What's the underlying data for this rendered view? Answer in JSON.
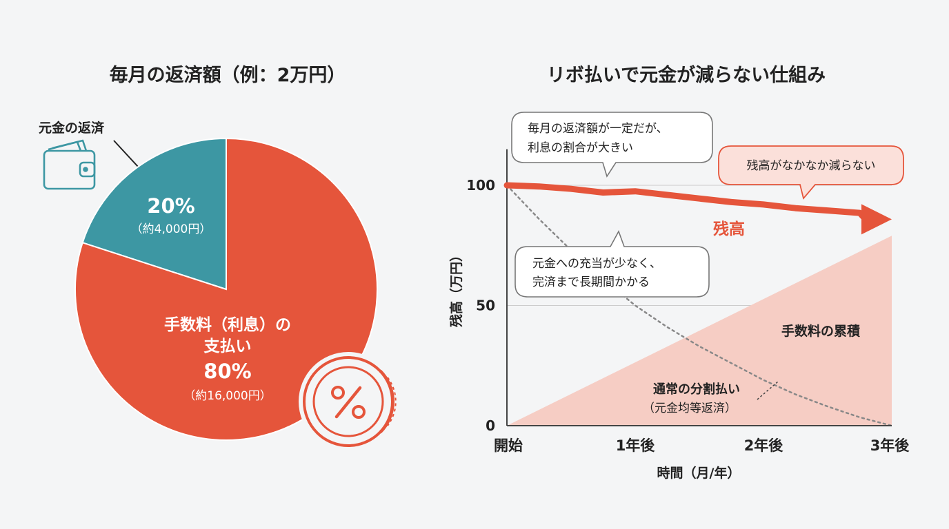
{
  "colors": {
    "background": "#f4f5f6",
    "interest": "#e5553b",
    "principal": "#3d97a3",
    "fee_area": "#f6cdc4",
    "text": "#222222",
    "callout_border": "#777777",
    "callout_accent_bg": "#fbe0da",
    "dotted_line": "#888888",
    "gridline": "#cccccc"
  },
  "left": {
    "title": "毎月の返済額（例：2万円）",
    "principal_label": "元金の返済",
    "icons": {
      "wallet": "wallet-icon",
      "coin": "percent-coin-icon",
      "arrow": "arrow-icon"
    }
  },
  "right": {
    "title": "リボ払いで元金が減らない仕組み",
    "callout_ratio": [
      "毎月の返済額が一定だが、",
      "利息の割合が大きい"
    ],
    "callout_balance": "残高がなかなか減らない",
    "callout_principal": [
      "元金への充当が少なく、",
      "完済まで長期間かかる"
    ],
    "label_balance": "残高",
    "label_fee": "手数料の累積",
    "label_normal": [
      "通常の分割払い",
      "（元金均等返済）"
    ]
  },
  "chart_data": [
    {
      "type": "pie",
      "slices": [
        {
          "label": "元金の返済",
          "percent_label": "20%",
          "amount_label": "（約4,000円）",
          "value": 20,
          "color": "#3d97a3"
        },
        {
          "label": "手数料（利息）の支払い",
          "label_lines": [
            "手数料（利息）の",
            "支払い"
          ],
          "percent_label": "80%",
          "amount_label": "（約16,000円）",
          "value": 80,
          "color": "#e5553b"
        }
      ]
    },
    {
      "type": "line",
      "xlabel": "時間（月/年）",
      "ylabel": "残高（万円）",
      "categories": [
        "開始",
        "1年後",
        "2年後",
        "3年後"
      ],
      "x": [
        0,
        1,
        2,
        3
      ],
      "yticks": [
        0,
        50,
        100
      ],
      "ylim": [
        0,
        115
      ],
      "series": [
        {
          "name": "残高",
          "style": "thick-arrow",
          "color": "#e5553b",
          "points": [
            [
              0,
              100
            ],
            [
              0.25,
              99.5
            ],
            [
              0.5,
              98.5
            ],
            [
              0.75,
              97
            ],
            [
              1,
              97.5
            ],
            [
              1.25,
              96
            ],
            [
              1.5,
              94.5
            ],
            [
              1.75,
              93
            ],
            [
              2,
              92
            ],
            [
              2.25,
              90.5
            ],
            [
              2.5,
              89.5
            ],
            [
              2.75,
              88.5
            ],
            [
              3,
              87
            ]
          ]
        },
        {
          "name": "手数料の累積",
          "style": "area",
          "color": "#f6cdc4",
          "points": [
            [
              0,
              0
            ],
            [
              3,
              79
            ]
          ]
        },
        {
          "name": "通常の分割払い（元金均等返済）",
          "style": "dotted",
          "color": "#888888",
          "points": [
            [
              0,
              100
            ],
            [
              0.25,
              86
            ],
            [
              0.5,
              73
            ],
            [
              0.75,
              61
            ],
            [
              1,
              50
            ],
            [
              1.25,
              41
            ],
            [
              1.5,
              33
            ],
            [
              1.75,
              26
            ],
            [
              2,
              19
            ],
            [
              2.25,
              13
            ],
            [
              2.5,
              8
            ],
            [
              2.75,
              3.5
            ],
            [
              3,
              0
            ]
          ]
        }
      ]
    }
  ]
}
